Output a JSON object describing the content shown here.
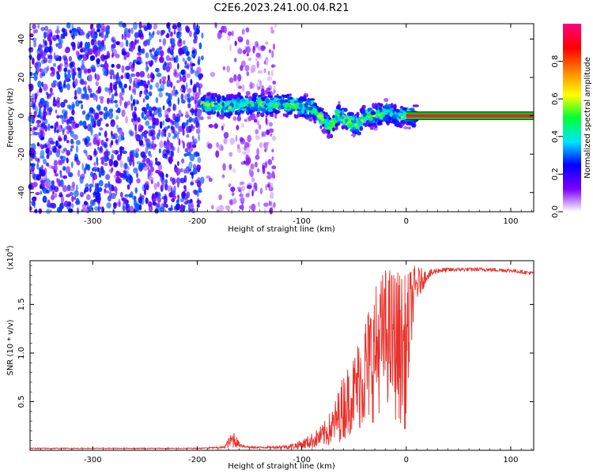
{
  "title": "C2E6.2023.241.00.04.R21",
  "chart_data": [
    {
      "type": "heatmap",
      "xlabel": "Height of straight line (km)",
      "ylabel": "Frequency (Hz)",
      "xlim": [
        -360,
        122
      ],
      "ylim": [
        -50,
        48
      ],
      "xticks": [
        -300,
        -200,
        -100,
        0,
        100
      ],
      "yticks": [
        -40,
        -20,
        0,
        20,
        40
      ],
      "colorbar": {
        "label": "Normalized spectral amplitude",
        "range": [
          0,
          1
        ],
        "ticks": [
          "0.0",
          "0.2",
          "0.4",
          "0.6",
          "0.8"
        ],
        "colormap": [
          "#ffffff",
          "#7b00ff",
          "#0000ff",
          "#00e5ff",
          "#00ff30",
          "#ffff00",
          "#ff8000",
          "#ff0000",
          "#ff0080"
        ]
      },
      "regions": [
        {
          "x": [
            -360,
            -195
          ],
          "y": [
            -50,
            48
          ],
          "level": 0.25,
          "pattern": "dense noise"
        },
        {
          "x": [
            -190,
            -125
          ],
          "y": [
            -50,
            48
          ],
          "level": 0.08,
          "pattern": "sparse noise"
        },
        {
          "x": [
            -195,
            10
          ],
          "y": [
            -10,
            10
          ],
          "level": 0.5,
          "pattern": "signal band"
        },
        {
          "x": [
            0,
            122
          ],
          "y": [
            -2,
            2
          ],
          "level": 1.0,
          "pattern": "direct carrier"
        }
      ],
      "signal_center_freq": [
        {
          "x": -195,
          "y": 6
        },
        {
          "x": -170,
          "y": 5
        },
        {
          "x": -140,
          "y": 6
        },
        {
          "x": -120,
          "y": 6
        },
        {
          "x": -100,
          "y": 5
        },
        {
          "x": -90,
          "y": 4
        },
        {
          "x": -80,
          "y": -2
        },
        {
          "x": -72,
          "y": -6
        },
        {
          "x": -65,
          "y": 1
        },
        {
          "x": -55,
          "y": -3
        },
        {
          "x": -45,
          "y": -5
        },
        {
          "x": -40,
          "y": 0
        },
        {
          "x": -30,
          "y": 0
        },
        {
          "x": -20,
          "y": 2
        },
        {
          "x": -10,
          "y": 0
        },
        {
          "x": 0,
          "y": 0
        },
        {
          "x": 122,
          "y": 0
        }
      ]
    },
    {
      "type": "line",
      "xlabel": "Height of straight line (km)",
      "ylabel": "SNR (10 * v/v)",
      "exponent_label": "(x10",
      "exponent_power": "4",
      "exponent_close": ")",
      "xlim": [
        -360,
        122
      ],
      "ylim": [
        0,
        1.95
      ],
      "xticks": [
        -300,
        -200,
        -100,
        0,
        100
      ],
      "yticks": [
        0.5,
        1.0,
        1.5
      ],
      "ytick_labels": [
        "0.5",
        "1.0",
        "1.5"
      ],
      "line_color": "#e8302a",
      "series": [
        {
          "x": [
            -360,
            -300,
            -250,
            -200,
            -175,
            -165,
            -160,
            -150,
            -130,
            -110,
            -100,
            -90,
            -80,
            -70,
            -60,
            -50,
            -40,
            -30,
            -20,
            -10,
            0,
            5,
            10,
            20,
            30,
            50,
            75,
            100,
            122
          ],
          "y": [
            0.02,
            0.02,
            0.02,
            0.02,
            0.03,
            0.12,
            0.06,
            0.03,
            0.03,
            0.04,
            0.06,
            0.1,
            0.15,
            0.25,
            0.45,
            0.6,
            0.8,
            1.0,
            1.2,
            1.1,
            1.0,
            1.5,
            1.7,
            1.8,
            1.85,
            1.86,
            1.86,
            1.85,
            1.82
          ],
          "spread": [
            0.005,
            0.005,
            0.005,
            0.005,
            0.01,
            0.1,
            0.03,
            0.01,
            0.01,
            0.03,
            0.05,
            0.08,
            0.12,
            0.2,
            0.35,
            0.4,
            0.6,
            0.7,
            0.7,
            0.8,
            0.8,
            0.4,
            0.2,
            0.05,
            0.03,
            0.02,
            0.02,
            0.02,
            0.02
          ]
        }
      ]
    }
  ]
}
